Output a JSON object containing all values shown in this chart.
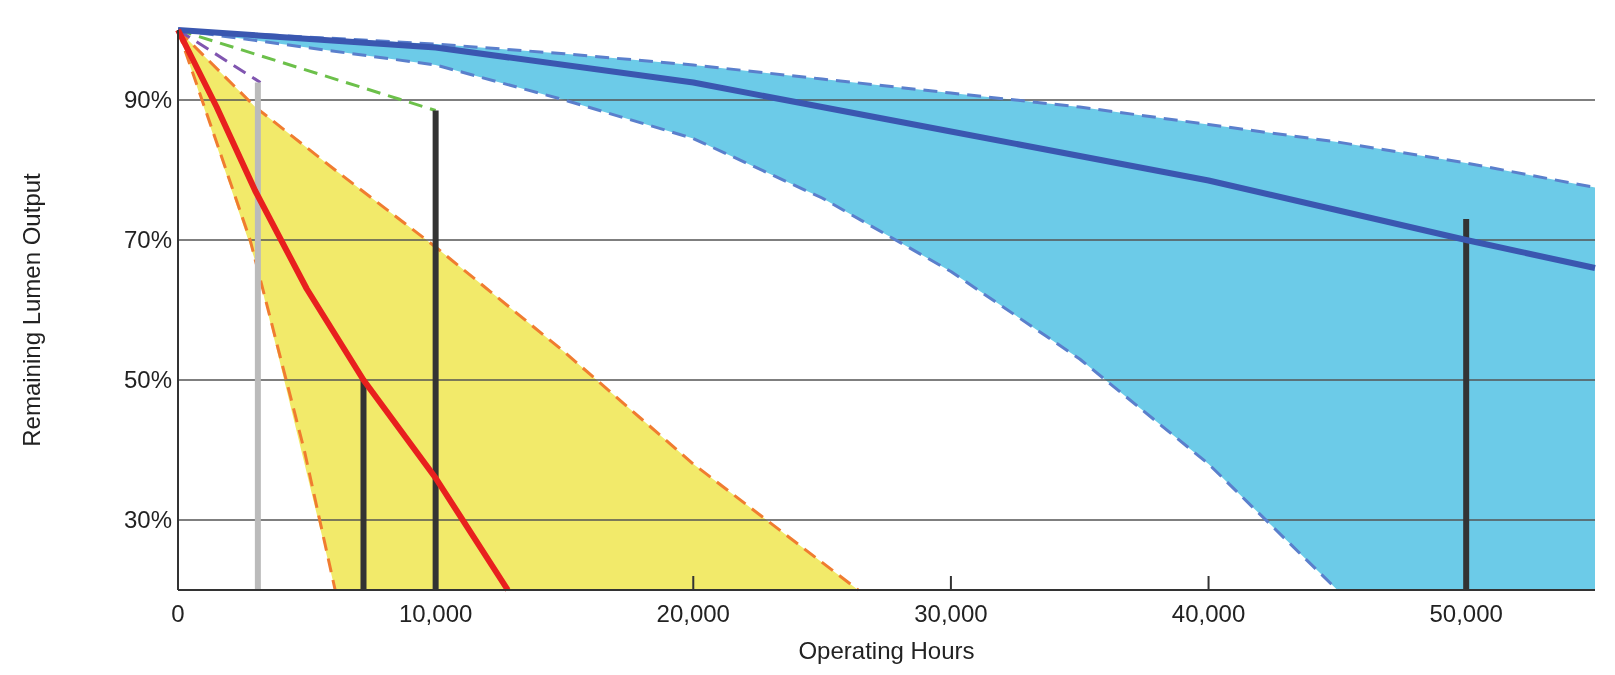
{
  "chart_data": {
    "type": "line",
    "xlabel": "Operating Hours",
    "ylabel": "Remaining Lumen Output",
    "xlim": [
      0,
      55000
    ],
    "ylim": [
      20,
      100
    ],
    "xticks": [
      0,
      {
        "value": 10000,
        "label": "10,000"
      },
      {
        "value": 20000,
        "label": "20,000"
      },
      {
        "value": 30000,
        "label": "30,000"
      },
      {
        "value": 40000,
        "label": "40,000"
      },
      {
        "value": 50000,
        "label": "50,000"
      }
    ],
    "yticks": [
      {
        "value": 30,
        "label": "30%"
      },
      {
        "value": 50,
        "label": "50%"
      },
      {
        "value": 70,
        "label": "70%"
      },
      {
        "value": 90,
        "label": "90%"
      }
    ],
    "grid": "y",
    "marker": "none",
    "series": [
      {
        "line_style": "dashed",
        "color": "#5a7fcc",
        "x": [
          0,
          10000,
          15000,
          20000,
          25000,
          30000,
          35000,
          40000,
          45000,
          50000,
          55000
        ],
        "values": [
          100,
          98,
          96.6,
          95,
          93,
          91,
          89,
          86.5,
          84,
          81,
          77.5
        ],
        "lower": [
          100,
          95,
          90,
          84.5,
          76,
          65.5,
          53,
          38,
          20,
          20,
          20
        ],
        "upper": [
          100,
          98,
          96.6,
          95,
          93,
          91,
          89,
          86.5,
          84,
          81,
          77.5
        ]
      },
      {
        "line_style": "dashed",
        "color": "#5a7fcc",
        "x": [
          0,
          10000,
          15000,
          20000,
          25000,
          30000,
          35000,
          40000,
          45000
        ],
        "values": [
          100,
          95,
          90,
          84.5,
          76,
          65.5,
          53,
          38,
          20
        ]
      },
      {
        "line_style": "dashed",
        "color": "#f07c30",
        "x": [
          0,
          3000,
          6100,
          10000,
          15000,
          20000,
          26400
        ],
        "values": [
          100,
          89,
          80,
          69,
          54,
          38,
          20
        ],
        "lower": [
          100,
          67,
          20,
          20,
          20,
          20,
          20
        ],
        "upper": [
          100,
          89,
          80,
          69,
          54,
          38,
          20
        ]
      },
      {
        "line_style": "dashed",
        "color": "#f07c30",
        "x": [
          0,
          2800,
          4900,
          6100
        ],
        "values": [
          100,
          70,
          40,
          20
        ]
      },
      {
        "line_style": "dashed",
        "color": "#6cc04a",
        "x": [
          0,
          10000
        ],
        "values": [
          100,
          88.5
        ]
      },
      {
        "line_style": "dashed",
        "color": "#8055b0",
        "x": [
          0,
          3200
        ],
        "values": [
          100,
          92.5
        ]
      },
      {
        "line_style": "solid",
        "color": "#bbbbbb",
        "x": [
          3100,
          3100
        ],
        "values": [
          20,
          92.5
        ]
      },
      {
        "line_style": "solid",
        "color": "#333333",
        "x": [
          7200,
          7200
        ],
        "values": [
          20,
          50
        ]
      },
      {
        "line_style": "solid",
        "color": "#333333",
        "x": [
          10000,
          10000
        ],
        "values": [
          20,
          88.5
        ]
      },
      {
        "line_style": "solid",
        "color": "#333333",
        "x": [
          50000,
          50000
        ],
        "values": [
          20,
          73
        ]
      },
      {
        "line_style": "solid",
        "color": "#3a57b0",
        "x": [
          0,
          10000,
          20000,
          30000,
          40000,
          50000,
          55000
        ],
        "values": [
          100,
          97.5,
          92.5,
          85.5,
          78.5,
          70,
          66
        ]
      },
      {
        "line_style": "solid",
        "color": "#e8201e",
        "x": [
          0,
          1500,
          3000,
          5000,
          7200,
          10000,
          12800
        ],
        "values": [
          100,
          89,
          77,
          63,
          50,
          36,
          20
        ]
      }
    ]
  }
}
